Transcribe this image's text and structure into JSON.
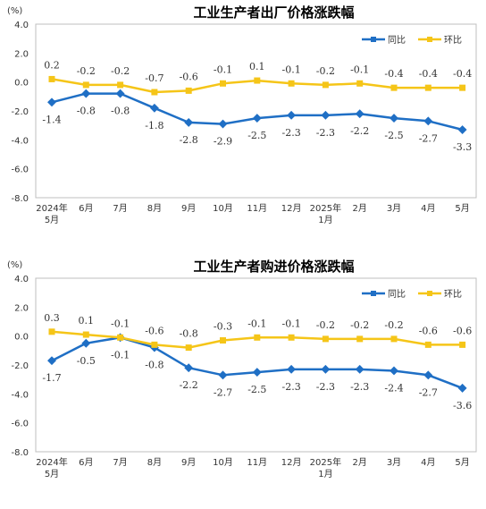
{
  "chart_data": [
    {
      "type": "line",
      "title": "工业生产者出厂价格涨跌幅",
      "unit": "(%)",
      "ylim": [
        -8.0,
        4.0
      ],
      "yticks": [
        "4.0",
        "2.0",
        "0.0",
        "-2.0",
        "-4.0",
        "-6.0",
        "-8.0"
      ],
      "categories": [
        [
          "2024年",
          "5月"
        ],
        [
          "6月"
        ],
        [
          "7月"
        ],
        [
          "8月"
        ],
        [
          "9月"
        ],
        [
          "10月"
        ],
        [
          "11月"
        ],
        [
          "12月"
        ],
        [
          "2025年",
          "1月"
        ],
        [
          "2月"
        ],
        [
          "3月"
        ],
        [
          "4月"
        ],
        [
          "5月"
        ]
      ],
      "legend_position": "top-right",
      "grid": false,
      "series": [
        {
          "name": "同比",
          "color": "#1f6fc5",
          "values": [
            -1.4,
            -0.8,
            -0.8,
            -1.8,
            -2.8,
            -2.9,
            -2.5,
            -2.3,
            -2.3,
            -2.2,
            -2.5,
            -2.7,
            -3.3
          ],
          "labels": [
            "-1.4",
            "-0.8",
            "-0.8",
            "-1.8",
            "-2.8",
            "-2.9",
            "-2.5",
            "-2.3",
            "-2.3",
            "-2.2",
            "-2.5",
            "-2.7",
            "-3.3"
          ]
        },
        {
          "name": "环比",
          "color": "#f5c518",
          "values": [
            0.2,
            -0.2,
            -0.2,
            -0.7,
            -0.6,
            -0.1,
            0.1,
            -0.1,
            -0.2,
            -0.1,
            -0.4,
            -0.4,
            -0.4
          ],
          "labels": [
            "0.2",
            "-0.2",
            "-0.2",
            "-0.7",
            "-0.6",
            "-0.1",
            "0.1",
            "-0.1",
            "-0.2",
            "-0.1",
            "-0.4",
            "-0.4",
            "-0.4"
          ]
        }
      ]
    },
    {
      "type": "line",
      "title": "工业生产者购进价格涨跌幅",
      "unit": "(%)",
      "ylim": [
        -8.0,
        4.0
      ],
      "yticks": [
        "4.0",
        "2.0",
        "0.0",
        "-2.0",
        "-4.0",
        "-6.0",
        "-8.0"
      ],
      "categories": [
        [
          "2024年",
          "5月"
        ],
        [
          "6月"
        ],
        [
          "7月"
        ],
        [
          "8月"
        ],
        [
          "9月"
        ],
        [
          "10月"
        ],
        [
          "11月"
        ],
        [
          "12月"
        ],
        [
          "2025年",
          "1月"
        ],
        [
          "2月"
        ],
        [
          "3月"
        ],
        [
          "4月"
        ],
        [
          "5月"
        ]
      ],
      "legend_position": "top-right",
      "grid": false,
      "series": [
        {
          "name": "同比",
          "color": "#1f6fc5",
          "values": [
            -1.7,
            -0.5,
            -0.1,
            -0.8,
            -2.2,
            -2.7,
            -2.5,
            -2.3,
            -2.3,
            -2.3,
            -2.4,
            -2.7,
            -3.6
          ],
          "labels": [
            "-1.7",
            "-0.5",
            "-0.1",
            "-0.8",
            "-2.2",
            "-2.7",
            "-2.5",
            "-2.3",
            "-2.3",
            "-2.3",
            "-2.4",
            "-2.7",
            "-3.6"
          ]
        },
        {
          "name": "环比",
          "color": "#f5c518",
          "values": [
            0.3,
            0.1,
            -0.1,
            -0.6,
            -0.8,
            -0.3,
            -0.1,
            -0.1,
            -0.2,
            -0.2,
            -0.2,
            -0.6,
            -0.6
          ],
          "labels": [
            "0.3",
            "0.1",
            "-0.1",
            "-0.6",
            "-0.8",
            "-0.3",
            "-0.1",
            "-0.1",
            "-0.2",
            "-0.2",
            "-0.2",
            "-0.6",
            "-0.6"
          ]
        }
      ]
    }
  ]
}
